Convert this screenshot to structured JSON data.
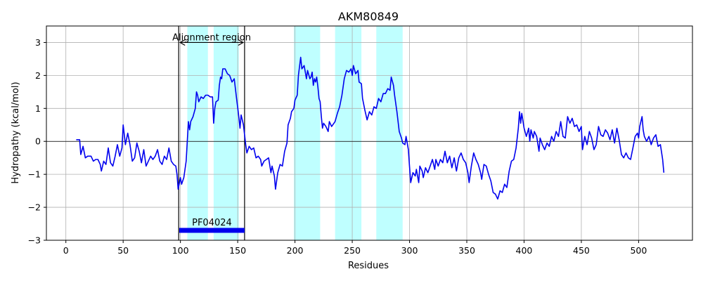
{
  "chart_data": {
    "type": "line",
    "title": "AKM80849",
    "xlabel": "Residues",
    "ylabel": "Hydropathy (kcal/mol)",
    "xlim": [
      -17,
      547
    ],
    "ylim": [
      -3,
      3.5
    ],
    "x_ticks": [
      0,
      50,
      100,
      150,
      200,
      250,
      300,
      350,
      400,
      450,
      500
    ],
    "y_ticks": [
      -3,
      -2,
      -1,
      0,
      1,
      2,
      3
    ],
    "grid": true,
    "colors": {
      "line": "#0000ee",
      "highlight": "#bfffff",
      "domain_bar": "#0000ee",
      "axis": "#000000",
      "grid": "#b0b0b0"
    },
    "highlight_regions": [
      [
        106,
        124
      ],
      [
        129,
        151
      ],
      [
        199,
        222
      ],
      [
        235,
        258
      ],
      [
        271,
        294
      ]
    ],
    "alignment_region": {
      "label": "Alignment region",
      "start": 98.5,
      "end": 156,
      "y": 3.0
    },
    "domain": {
      "label": "PF04024",
      "start": 99,
      "end": 156,
      "y": -2.7
    },
    "series": [
      {
        "points": [
          [
            9,
            0.05
          ],
          [
            12,
            0.05
          ],
          [
            13,
            -0.4
          ],
          [
            15,
            -0.15
          ],
          [
            17,
            -0.5
          ],
          [
            19,
            -0.45
          ],
          [
            22,
            -0.45
          ],
          [
            24,
            -0.6
          ],
          [
            26,
            -0.55
          ],
          [
            28,
            -0.55
          ],
          [
            30,
            -0.7
          ],
          [
            31,
            -0.9
          ],
          [
            33,
            -0.6
          ],
          [
            35,
            -0.7
          ],
          [
            37,
            -0.2
          ],
          [
            39,
            -0.65
          ],
          [
            41,
            -0.75
          ],
          [
            43,
            -0.45
          ],
          [
            45,
            -0.1
          ],
          [
            47,
            -0.45
          ],
          [
            49,
            -0.2
          ],
          [
            50,
            0.5
          ],
          [
            52,
            -0.1
          ],
          [
            54,
            0.25
          ],
          [
            56,
            -0.1
          ],
          [
            58,
            -0.6
          ],
          [
            60,
            -0.5
          ],
          [
            62,
            -0.05
          ],
          [
            64,
            -0.3
          ],
          [
            66,
            -0.65
          ],
          [
            68,
            -0.25
          ],
          [
            70,
            -0.75
          ],
          [
            72,
            -0.6
          ],
          [
            74,
            -0.45
          ],
          [
            76,
            -0.55
          ],
          [
            78,
            -0.45
          ],
          [
            80,
            -0.25
          ],
          [
            82,
            -0.6
          ],
          [
            84,
            -0.7
          ],
          [
            86,
            -0.45
          ],
          [
            88,
            -0.55
          ],
          [
            90,
            -0.2
          ],
          [
            92,
            -0.6
          ],
          [
            94,
            -0.7
          ],
          [
            96,
            -0.75
          ],
          [
            97,
            -1.0
          ],
          [
            98,
            -1.45
          ],
          [
            100,
            -1.1
          ],
          [
            101,
            -1.3
          ],
          [
            103,
            -1.1
          ],
          [
            105,
            -0.6
          ],
          [
            106,
            0.0
          ],
          [
            107,
            0.6
          ],
          [
            108,
            0.35
          ],
          [
            109,
            0.6
          ],
          [
            111,
            0.75
          ],
          [
            113,
            1.0
          ],
          [
            114,
            1.5
          ],
          [
            115,
            1.4
          ],
          [
            116,
            1.2
          ],
          [
            118,
            1.35
          ],
          [
            120,
            1.3
          ],
          [
            122,
            1.4
          ],
          [
            124,
            1.4
          ],
          [
            126,
            1.35
          ],
          [
            128,
            1.35
          ],
          [
            129,
            0.55
          ],
          [
            130,
            1.0
          ],
          [
            131,
            1.2
          ],
          [
            133,
            1.25
          ],
          [
            134,
            1.7
          ],
          [
            135,
            1.95
          ],
          [
            136,
            1.9
          ],
          [
            137,
            2.2
          ],
          [
            139,
            2.2
          ],
          [
            141,
            2.05
          ],
          [
            143,
            2.0
          ],
          [
            145,
            1.8
          ],
          [
            147,
            1.9
          ],
          [
            149,
            1.3
          ],
          [
            151,
            0.75
          ],
          [
            152,
            0.4
          ],
          [
            153,
            0.8
          ],
          [
            155,
            0.5
          ],
          [
            157,
            -0.1
          ],
          [
            158,
            -0.35
          ],
          [
            160,
            -0.15
          ],
          [
            162,
            -0.25
          ],
          [
            164,
            -0.2
          ],
          [
            166,
            -0.5
          ],
          [
            168,
            -0.45
          ],
          [
            170,
            -0.55
          ],
          [
            171,
            -0.75
          ],
          [
            173,
            -0.6
          ],
          [
            175,
            -0.55
          ],
          [
            177,
            -0.5
          ],
          [
            179,
            -0.95
          ],
          [
            180,
            -0.75
          ],
          [
            182,
            -1.05
          ],
          [
            183,
            -1.45
          ],
          [
            185,
            -0.95
          ],
          [
            187,
            -0.7
          ],
          [
            189,
            -0.75
          ],
          [
            191,
            -0.3
          ],
          [
            193,
            -0.05
          ],
          [
            194,
            0.5
          ],
          [
            196,
            0.7
          ],
          [
            197,
            0.9
          ],
          [
            199,
            1.0
          ],
          [
            200,
            1.25
          ],
          [
            202,
            1.4
          ],
          [
            203,
            2.0
          ],
          [
            205,
            2.55
          ],
          [
            206,
            2.2
          ],
          [
            208,
            2.3
          ],
          [
            209,
            2.1
          ],
          [
            210,
            1.9
          ],
          [
            211,
            2.15
          ],
          [
            213,
            1.9
          ],
          [
            214,
            1.95
          ],
          [
            215,
            2.1
          ],
          [
            216,
            1.7
          ],
          [
            217,
            1.9
          ],
          [
            218,
            1.8
          ],
          [
            219,
            1.95
          ],
          [
            220,
            1.65
          ],
          [
            221,
            1.3
          ],
          [
            222,
            1.2
          ],
          [
            223,
            0.75
          ],
          [
            224,
            0.4
          ],
          [
            225,
            0.55
          ],
          [
            227,
            0.45
          ],
          [
            229,
            0.3
          ],
          [
            230,
            0.6
          ],
          [
            232,
            0.45
          ],
          [
            234,
            0.55
          ],
          [
            235,
            0.6
          ],
          [
            237,
            0.85
          ],
          [
            239,
            1.05
          ],
          [
            241,
            1.4
          ],
          [
            243,
            1.9
          ],
          [
            245,
            2.15
          ],
          [
            247,
            2.1
          ],
          [
            249,
            2.2
          ],
          [
            250,
            2.0
          ],
          [
            251,
            2.3
          ],
          [
            253,
            2.05
          ],
          [
            255,
            2.15
          ],
          [
            256,
            1.8
          ],
          [
            258,
            1.75
          ],
          [
            259,
            1.3
          ],
          [
            261,
            0.95
          ],
          [
            263,
            0.65
          ],
          [
            265,
            0.9
          ],
          [
            267,
            0.8
          ],
          [
            269,
            1.05
          ],
          [
            271,
            1.0
          ],
          [
            273,
            1.3
          ],
          [
            275,
            1.2
          ],
          [
            277,
            1.45
          ],
          [
            279,
            1.45
          ],
          [
            281,
            1.6
          ],
          [
            283,
            1.55
          ],
          [
            284,
            1.95
          ],
          [
            286,
            1.7
          ],
          [
            287,
            1.4
          ],
          [
            289,
            0.9
          ],
          [
            291,
            0.3
          ],
          [
            293,
            0.1
          ],
          [
            294,
            -0.05
          ],
          [
            296,
            -0.1
          ],
          [
            297,
            0.15
          ],
          [
            299,
            -0.25
          ],
          [
            300,
            -0.75
          ],
          [
            301,
            -1.25
          ],
          [
            303,
            -0.95
          ],
          [
            305,
            -1.05
          ],
          [
            306,
            -0.85
          ],
          [
            308,
            -1.25
          ],
          [
            309,
            -0.75
          ],
          [
            311,
            -0.9
          ],
          [
            312,
            -1.1
          ],
          [
            314,
            -0.8
          ],
          [
            316,
            -0.95
          ],
          [
            318,
            -0.75
          ],
          [
            320,
            -0.55
          ],
          [
            322,
            -0.85
          ],
          [
            323,
            -0.55
          ],
          [
            325,
            -0.75
          ],
          [
            327,
            -0.55
          ],
          [
            329,
            -0.65
          ],
          [
            331,
            -0.3
          ],
          [
            333,
            -0.65
          ],
          [
            335,
            -0.45
          ],
          [
            337,
            -0.8
          ],
          [
            339,
            -0.5
          ],
          [
            341,
            -0.9
          ],
          [
            343,
            -0.5
          ],
          [
            345,
            -0.35
          ],
          [
            347,
            -0.55
          ],
          [
            349,
            -0.65
          ],
          [
            351,
            -0.95
          ],
          [
            352,
            -1.25
          ],
          [
            354,
            -0.75
          ],
          [
            356,
            -0.35
          ],
          [
            358,
            -0.55
          ],
          [
            360,
            -0.7
          ],
          [
            362,
            -0.95
          ],
          [
            363,
            -1.15
          ],
          [
            365,
            -0.7
          ],
          [
            367,
            -0.75
          ],
          [
            369,
            -1.0
          ],
          [
            371,
            -1.2
          ],
          [
            373,
            -1.55
          ],
          [
            375,
            -1.6
          ],
          [
            377,
            -1.75
          ],
          [
            379,
            -1.5
          ],
          [
            381,
            -1.55
          ],
          [
            383,
            -1.3
          ],
          [
            385,
            -1.4
          ],
          [
            387,
            -0.9
          ],
          [
            389,
            -0.6
          ],
          [
            391,
            -0.55
          ],
          [
            393,
            -0.2
          ],
          [
            395,
            0.4
          ],
          [
            396,
            0.9
          ],
          [
            397,
            0.55
          ],
          [
            398,
            0.85
          ],
          [
            400,
            0.4
          ],
          [
            402,
            0.15
          ],
          [
            404,
            0.4
          ],
          [
            405,
            0.0
          ],
          [
            406,
            0.35
          ],
          [
            408,
            0.1
          ],
          [
            409,
            0.3
          ],
          [
            411,
            0.15
          ],
          [
            413,
            -0.3
          ],
          [
            414,
            0.1
          ],
          [
            416,
            -0.1
          ],
          [
            418,
            -0.25
          ],
          [
            420,
            -0.05
          ],
          [
            422,
            -0.15
          ],
          [
            424,
            0.15
          ],
          [
            426,
            0.0
          ],
          [
            428,
            0.3
          ],
          [
            430,
            0.15
          ],
          [
            432,
            0.6
          ],
          [
            434,
            0.15
          ],
          [
            436,
            0.1
          ],
          [
            438,
            0.75
          ],
          [
            440,
            0.55
          ],
          [
            442,
            0.7
          ],
          [
            444,
            0.45
          ],
          [
            446,
            0.5
          ],
          [
            448,
            0.3
          ],
          [
            450,
            0.45
          ],
          [
            451,
            -0.25
          ],
          [
            453,
            0.15
          ],
          [
            455,
            -0.1
          ],
          [
            457,
            0.3
          ],
          [
            459,
            0.1
          ],
          [
            461,
            -0.25
          ],
          [
            463,
            -0.1
          ],
          [
            465,
            0.45
          ],
          [
            467,
            0.2
          ],
          [
            469,
            0.15
          ],
          [
            471,
            0.35
          ],
          [
            473,
            0.25
          ],
          [
            475,
            0.05
          ],
          [
            477,
            0.35
          ],
          [
            479,
            -0.05
          ],
          [
            481,
            0.4
          ],
          [
            483,
            0.05
          ],
          [
            485,
            -0.4
          ],
          [
            487,
            -0.5
          ],
          [
            489,
            -0.35
          ],
          [
            491,
            -0.5
          ],
          [
            493,
            -0.55
          ],
          [
            495,
            -0.2
          ],
          [
            497,
            0.15
          ],
          [
            499,
            0.25
          ],
          [
            500,
            0.1
          ],
          [
            501,
            0.45
          ],
          [
            503,
            0.75
          ],
          [
            504,
            0.35
          ],
          [
            505,
            0.15
          ],
          [
            507,
            0.0
          ],
          [
            509,
            0.15
          ],
          [
            511,
            -0.1
          ],
          [
            513,
            0.1
          ],
          [
            515,
            0.2
          ],
          [
            517,
            -0.15
          ],
          [
            519,
            -0.1
          ],
          [
            521,
            -0.55
          ],
          [
            522,
            -0.95
          ]
        ]
      }
    ]
  }
}
